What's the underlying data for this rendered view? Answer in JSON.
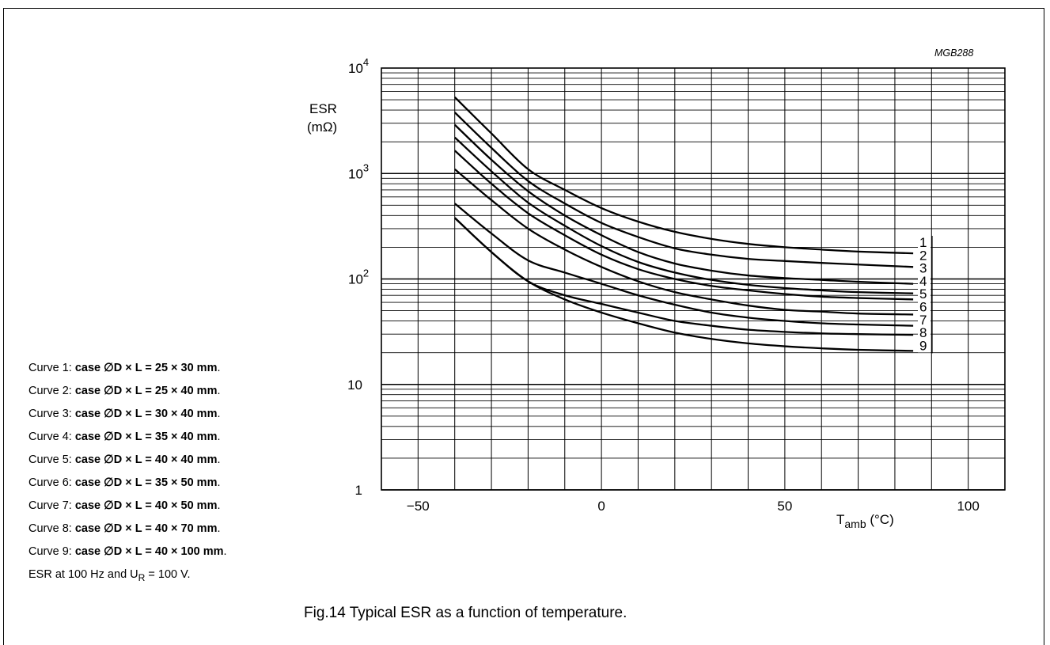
{
  "figure_id": "MGB288",
  "caption": "Fig.14  Typical ESR as a function of temperature.",
  "legend_lines": [
    {
      "prefix": "Curve 1: ",
      "bold": "case ∅D × L = 25 × 30 mm",
      "suffix": "."
    },
    {
      "prefix": "Curve 2: ",
      "bold": "case ∅D × L = 25 × 40 mm",
      "suffix": "."
    },
    {
      "prefix": "Curve 3: ",
      "bold": "case ∅D × L = 30 × 40 mm",
      "suffix": "."
    },
    {
      "prefix": "Curve 4: ",
      "bold": "case ∅D × L = 35 × 40 mm",
      "suffix": "."
    },
    {
      "prefix": "Curve 5: ",
      "bold": "case ∅D × L = 40 × 40 mm",
      "suffix": "."
    },
    {
      "prefix": "Curve 6: ",
      "bold": "case ∅D × L = 35 × 50 mm",
      "suffix": "."
    },
    {
      "prefix": "Curve 7: ",
      "bold": "case ∅D × L = 40 × 50 mm",
      "suffix": "."
    },
    {
      "prefix": "Curve 8: ",
      "bold": "case ∅D × L = 40 × 70 mm",
      "suffix": "."
    },
    {
      "prefix": "Curve 9: ",
      "bold": "case ∅D × L = 40 × 100 mm",
      "suffix": "."
    }
  ],
  "note": {
    "text": "ESR at 100 Hz and U",
    "sub": "R",
    "rest": " = 100 V."
  },
  "chart_data": {
    "type": "line",
    "xlabel": {
      "main": "T",
      "sub": "amb",
      "unit": " (°C)"
    },
    "ylabel": {
      "line1": "ESR",
      "line2": "(mΩ)"
    },
    "xlim": [
      -60,
      110
    ],
    "ylim": [
      1,
      10000
    ],
    "yscale": "log",
    "grid": true,
    "xticks": [
      {
        "value": -50,
        "label": "−50"
      },
      {
        "value": 0,
        "label": "0"
      },
      {
        "value": 50,
        "label": "50"
      },
      {
        "value": 100,
        "label": "100"
      }
    ],
    "yticks": [
      {
        "value": 1,
        "label": "1"
      },
      {
        "value": 10,
        "label": "10"
      },
      {
        "value": 100,
        "label": "10",
        "sup": "2"
      },
      {
        "value": 1000,
        "label": "10",
        "sup": "3"
      },
      {
        "value": 10000,
        "label": "10",
        "sup": "4"
      }
    ],
    "series": [
      {
        "name": "1",
        "points": [
          [
            -40,
            5300
          ],
          [
            -30,
            2400
          ],
          [
            -20,
            1100
          ],
          [
            -10,
            700
          ],
          [
            0,
            470
          ],
          [
            10,
            350
          ],
          [
            20,
            280
          ],
          [
            30,
            240
          ],
          [
            40,
            215
          ],
          [
            50,
            200
          ],
          [
            60,
            190
          ],
          [
            70,
            182
          ],
          [
            85,
            175
          ]
        ]
      },
      {
        "name": "2",
        "points": [
          [
            -40,
            3800
          ],
          [
            -30,
            1750
          ],
          [
            -20,
            850
          ],
          [
            -10,
            520
          ],
          [
            0,
            340
          ],
          [
            10,
            250
          ],
          [
            20,
            195
          ],
          [
            30,
            170
          ],
          [
            40,
            155
          ],
          [
            50,
            148
          ],
          [
            60,
            142
          ],
          [
            70,
            137
          ],
          [
            85,
            130
          ]
        ]
      },
      {
        "name": "3",
        "points": [
          [
            -40,
            2900
          ],
          [
            -30,
            1350
          ],
          [
            -20,
            680
          ],
          [
            -10,
            400
          ],
          [
            0,
            260
          ],
          [
            10,
            180
          ],
          [
            20,
            140
          ],
          [
            30,
            120
          ],
          [
            40,
            108
          ],
          [
            50,
            102
          ],
          [
            60,
            98
          ],
          [
            70,
            94
          ],
          [
            85,
            90
          ]
        ]
      },
      {
        "name": "4",
        "points": [
          [
            -40,
            2200
          ],
          [
            -30,
            1050
          ],
          [
            -20,
            530
          ],
          [
            -10,
            320
          ],
          [
            0,
            205
          ],
          [
            10,
            145
          ],
          [
            20,
            115
          ],
          [
            30,
            98
          ],
          [
            40,
            88
          ],
          [
            50,
            82
          ],
          [
            60,
            78
          ],
          [
            70,
            75
          ],
          [
            85,
            73
          ]
        ]
      },
      {
        "name": "5",
        "points": [
          [
            -40,
            1650
          ],
          [
            -30,
            800
          ],
          [
            -20,
            420
          ],
          [
            -10,
            260
          ],
          [
            0,
            170
          ],
          [
            10,
            124
          ],
          [
            20,
            100
          ],
          [
            30,
            86
          ],
          [
            40,
            78
          ],
          [
            50,
            72
          ],
          [
            60,
            68
          ],
          [
            70,
            66
          ],
          [
            85,
            64
          ]
        ]
      },
      {
        "name": "6",
        "points": [
          [
            -40,
            1100
          ],
          [
            -30,
            560
          ],
          [
            -20,
            300
          ],
          [
            -10,
            190
          ],
          [
            0,
            130
          ],
          [
            10,
            95
          ],
          [
            20,
            75
          ],
          [
            30,
            64
          ],
          [
            40,
            56
          ],
          [
            50,
            51
          ],
          [
            60,
            49
          ],
          [
            70,
            47
          ],
          [
            85,
            46
          ]
        ]
      },
      {
        "name": "7",
        "points": [
          [
            -40,
            520
          ],
          [
            -30,
            270
          ],
          [
            -20,
            150
          ],
          [
            -10,
            115
          ],
          [
            0,
            90
          ],
          [
            10,
            70
          ],
          [
            20,
            57
          ],
          [
            30,
            48
          ],
          [
            40,
            43
          ],
          [
            50,
            40
          ],
          [
            60,
            38
          ],
          [
            70,
            37
          ],
          [
            85,
            36
          ]
        ]
      },
      {
        "name": "8",
        "points": [
          [
            -40,
            380
          ],
          [
            -30,
            180
          ],
          [
            -20,
            95
          ],
          [
            -10,
            70
          ],
          [
            0,
            58
          ],
          [
            10,
            48
          ],
          [
            20,
            40
          ],
          [
            30,
            36
          ],
          [
            40,
            33
          ],
          [
            50,
            31.5
          ],
          [
            60,
            30.5
          ],
          [
            70,
            30
          ],
          [
            85,
            29.5
          ]
        ]
      },
      {
        "name": "9",
        "points": [
          [
            -40,
            380
          ],
          [
            -30,
            180
          ],
          [
            -20,
            95
          ],
          [
            -10,
            64
          ],
          [
            0,
            48
          ],
          [
            10,
            38
          ],
          [
            20,
            31
          ],
          [
            30,
            27
          ],
          [
            40,
            24.5
          ],
          [
            50,
            23
          ],
          [
            60,
            22
          ],
          [
            70,
            21.3
          ],
          [
            85,
            20.8
          ]
        ]
      }
    ]
  }
}
